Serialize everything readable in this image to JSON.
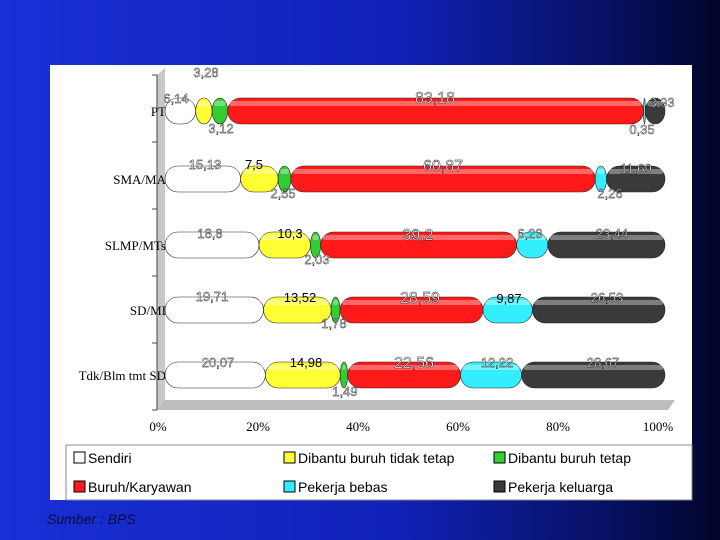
{
  "source_note": "Sumber : BPS",
  "chart_data": {
    "type": "bar",
    "orientation": "horizontal",
    "stacked": true,
    "normalized": true,
    "categories": [
      "PT",
      "SMA/MA",
      "SLMP/MTs",
      "SD/MI",
      "Tdk/Blm tmt SD"
    ],
    "x_ticks": [
      "0%",
      "20%",
      "40%",
      "60%",
      "80%",
      "100%"
    ],
    "xlim": [
      0,
      100
    ],
    "legend_position": "bottom",
    "series": [
      {
        "name": "Sendiri",
        "color": "#ffffff",
        "values": [
          6.14,
          15.13,
          18.8,
          19.71,
          20.07
        ],
        "labels": [
          "6,14",
          "15,13",
          "18,8",
          "19,71",
          "20,07"
        ]
      },
      {
        "name": "Dibantu buruh tidak tetap",
        "color": "#ffff33",
        "values": [
          3.28,
          7.5,
          10.3,
          13.52,
          14.98
        ],
        "labels": [
          "3,28",
          "7,5",
          "10,3",
          "13,52",
          "14,98"
        ]
      },
      {
        "name": "Dibantu buruh tetap",
        "color": "#33cc33",
        "values": [
          3.12,
          2.55,
          2.03,
          1.78,
          1.49
        ],
        "labels": [
          "3,12",
          "2,55",
          "2,03",
          "1,78",
          "1,49"
        ]
      },
      {
        "name": "Buruh/Karyawan",
        "color": "#ff1a1a",
        "values": [
          83.18,
          60.87,
          39.2,
          28.59,
          22.56
        ],
        "labels": [
          "83,18",
          "60,87",
          "39,2",
          "28,59",
          "22,56"
        ]
      },
      {
        "name": "Pekerja bebas",
        "color": "#33eeff",
        "values": [
          0.35,
          2.26,
          6.23,
          9.87,
          12.22
        ],
        "labels": [
          "0,35",
          "2,26",
          "6,23",
          "9,87",
          "12,22"
        ]
      },
      {
        "name": "Pekerja keluarga",
        "color": "#3a3a3a",
        "values": [
          3.93,
          11.69,
          23.44,
          26.53,
          28.67
        ],
        "labels": [
          "3,93",
          "11,69",
          "23,44",
          "26,53",
          "28,67"
        ]
      }
    ]
  }
}
